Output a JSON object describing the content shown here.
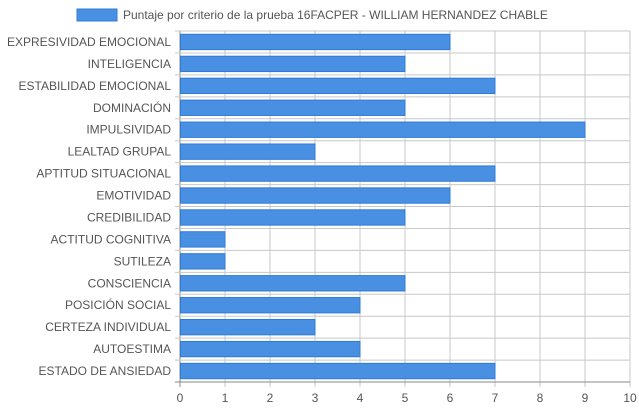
{
  "chart_data": {
    "type": "bar",
    "orientation": "horizontal",
    "categories": [
      "EXPRESIVIDAD EMOCIONAL",
      "INTELIGENCIA",
      "ESTABILIDAD EMOCIONAL",
      "DOMINACIÓN",
      "IMPULSIVIDAD",
      "LEALTAD GRUPAL",
      "APTITUD SITUACIONAL",
      "EMOTIVIDAD",
      "CREDIBILIDAD",
      "ACTITUD COGNITIVA",
      "SUTILEZA",
      "CONSCIENCIA",
      "POSICIÓN SOCIAL",
      "CERTEZA INDIVIDUAL",
      "AUTOESTIMA",
      "ESTADO DE ANSIEDAD"
    ],
    "series": [
      {
        "name": "Puntaje por criterio de la prueba 16FACPER - WILLIAM HERNANDEZ CHABLE",
        "values": [
          6,
          5,
          7,
          5,
          9,
          3,
          7,
          6,
          5,
          1,
          1,
          5,
          4,
          3,
          4,
          7
        ]
      }
    ],
    "xlim": [
      0,
      10
    ],
    "xticks": [
      "0",
      "1",
      "2",
      "3",
      "4",
      "5",
      "6",
      "7",
      "8",
      "9",
      "10"
    ],
    "grid": true,
    "legend_position": "top-center",
    "colors": {
      "bar_fill": "#4a90e2",
      "bar_stroke": "#2f7bd8",
      "grid": "#c8c8c8",
      "axis": "#888888",
      "text": "#555555"
    }
  }
}
